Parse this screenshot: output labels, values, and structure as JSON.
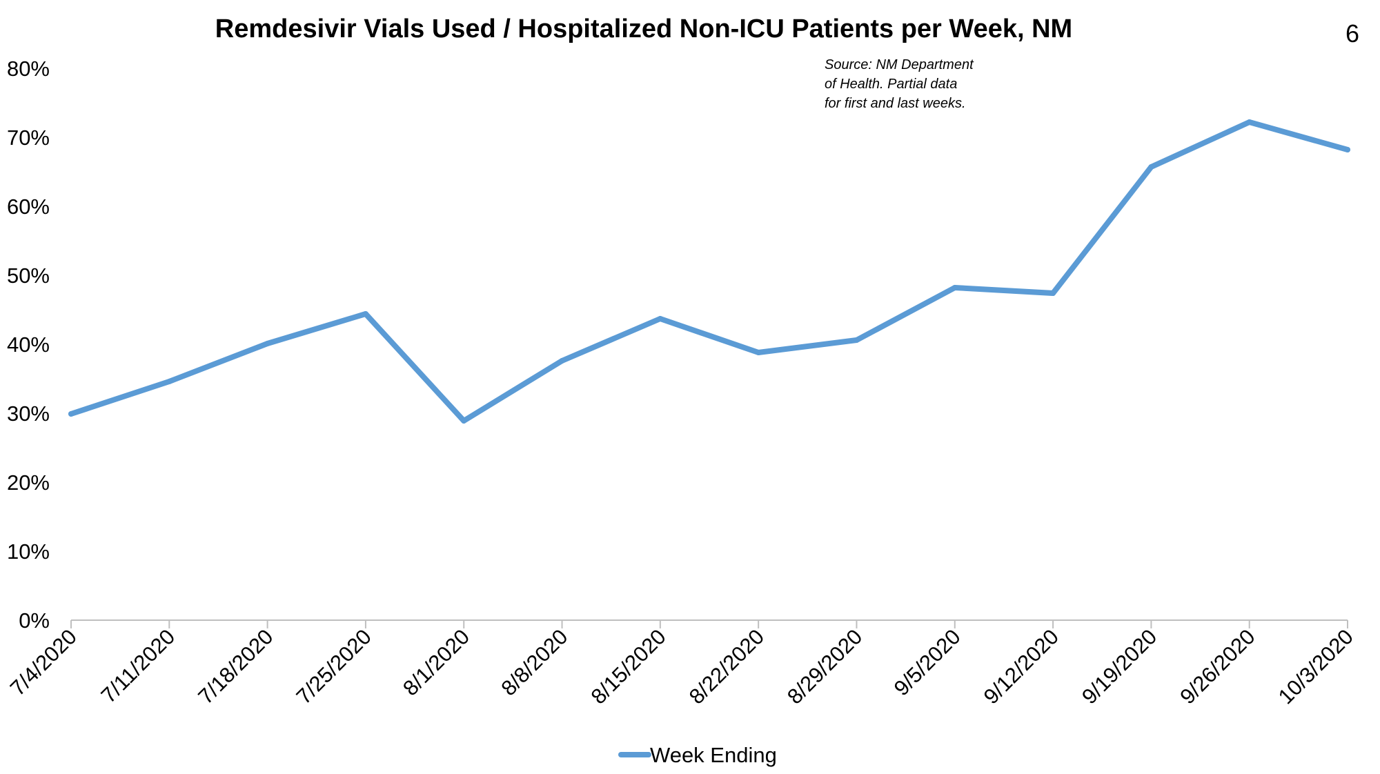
{
  "page_number": "6",
  "source_note": [
    "Source: NM Department",
    "of Health. Partial data",
    "for first and last weeks."
  ],
  "colors": {
    "series": "#5B9BD5",
    "axis": "#BFBFBF",
    "text": "#000000"
  },
  "chart_data": {
    "type": "line",
    "title": "Remdesivir Vials Used / Hospitalized Non-ICU Patients per Week, NM",
    "xlabel": "",
    "ylabel": "",
    "ylim": [
      0,
      80
    ],
    "y_ticks": [
      0,
      10,
      20,
      30,
      40,
      50,
      60,
      70,
      80
    ],
    "y_tick_labels": [
      "0%",
      "10%",
      "20%",
      "30%",
      "40%",
      "50%",
      "60%",
      "70%",
      "80%"
    ],
    "grid": false,
    "legend_position": "bottom",
    "categories": [
      "7/4/2020",
      "7/11/2020",
      "7/18/2020",
      "7/25/2020",
      "8/1/2020",
      "8/8/2020",
      "8/15/2020",
      "8/22/2020",
      "8/29/2020",
      "9/5/2020",
      "9/12/2020",
      "9/19/2020",
      "9/26/2020",
      "10/3/2020"
    ],
    "series": [
      {
        "name": "Week Ending",
        "values": [
          29.9,
          34.6,
          40.1,
          44.4,
          28.9,
          37.6,
          43.7,
          38.8,
          40.6,
          48.2,
          47.4,
          65.7,
          72.2,
          68.2
        ]
      }
    ]
  }
}
